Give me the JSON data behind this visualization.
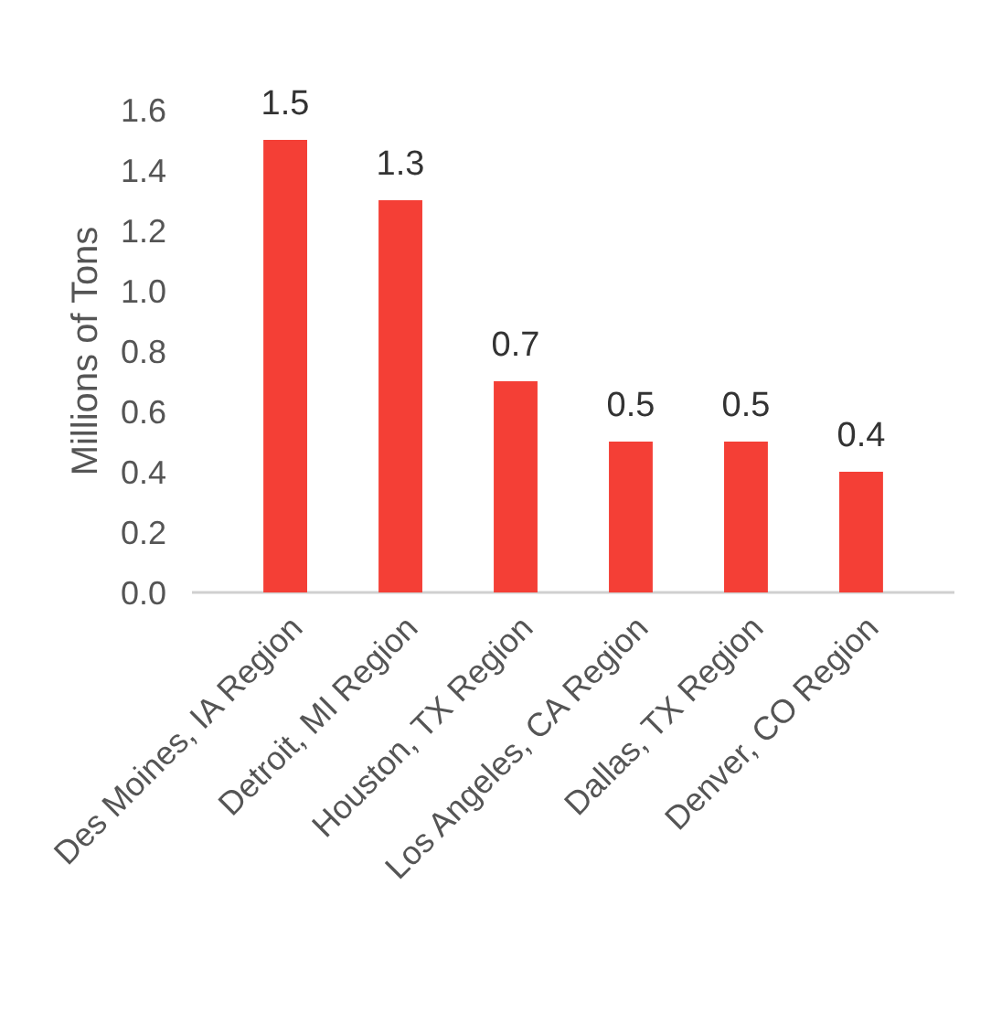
{
  "chart_data": {
    "type": "bar",
    "ylabel": "Millions of Tons",
    "categories": [
      "Des Moines, IA Region",
      "Detroit, MI Region",
      "Houston, TX Region",
      "Los Angeles, CA Region",
      "Dallas, TX Region",
      "Denver, CO Region"
    ],
    "values": [
      1.5,
      1.3,
      0.7,
      0.5,
      0.5,
      0.4
    ],
    "color": "#f43f36",
    "ylim": [
      0,
      1.6
    ],
    "yticks": [
      {
        "value": 0,
        "label": "0.0"
      },
      {
        "value": 0.2,
        "label": "0.2"
      },
      {
        "value": 0.4,
        "label": "0.4"
      },
      {
        "value": 0.6,
        "label": "0.6"
      },
      {
        "value": 0.8,
        "label": "0.8"
      },
      {
        "value": 1,
        "label": "1.0"
      },
      {
        "value": 1.2,
        "label": "1.2"
      },
      {
        "value": 1.4,
        "label": "1.4"
      },
      {
        "value": 1.6,
        "label": "1.6"
      }
    ],
    "data_labels": true,
    "grid": false
  }
}
